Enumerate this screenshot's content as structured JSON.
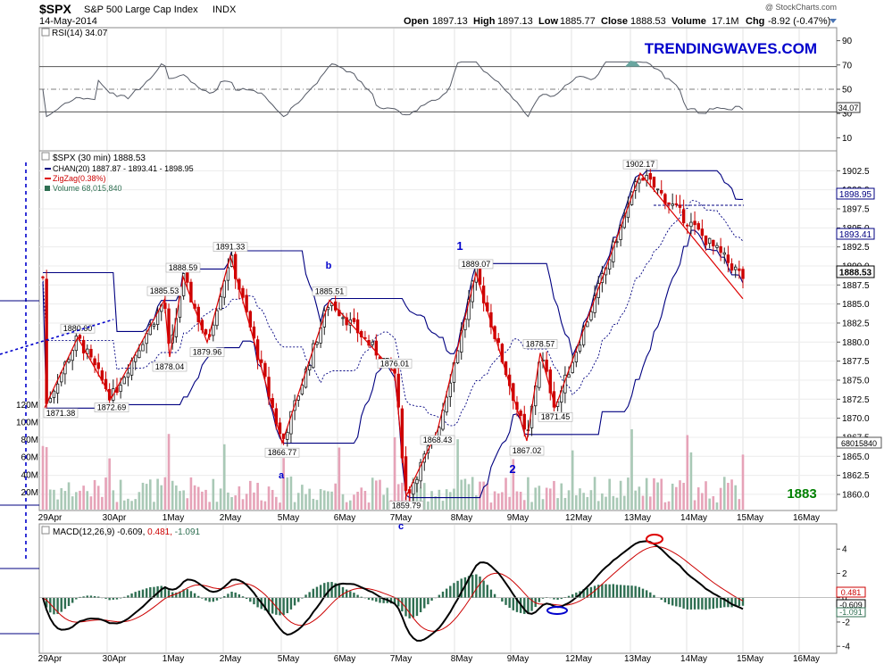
{
  "header": {
    "symbol": "$SPX",
    "name": "S&P 500 Large Cap Index",
    "exchange": "INDX",
    "date": "14-May-2014",
    "copyright": "@ StockCharts.com",
    "open_label": "Open",
    "open": "1897.13",
    "high_label": "High",
    "high": "1897.13",
    "low_label": "Low",
    "low": "1885.77",
    "close_label": "Close",
    "close": "1888.53",
    "volume_label": "Volume",
    "volume": "17.1M",
    "chg_label": "Chg",
    "chg": "-8.92 (-0.47%)"
  },
  "watermark": "TRENDINGWAVES.COM",
  "target_label": "1883",
  "rsi_panel": {
    "legend": "RSI(14) 34.07",
    "value_tag": "34.07",
    "ticks": [
      "90",
      "70",
      "50",
      "30",
      "10"
    ]
  },
  "price_panel": {
    "legend_title": "$SPX (30 min) 1888.53",
    "legend_chan": "CHAN(20) 1887.87 - 1893.41 - 1898.95",
    "legend_zigzag": "ZigZag(0.38%)",
    "legend_volume": "Volume 68,015,840",
    "price_ticks": [
      "1902.5",
      "1900.0",
      "1897.5",
      "1895.0",
      "1892.5",
      "1890.0",
      "1887.5",
      "1885.0",
      "1882.5",
      "1880.0",
      "1877.5",
      "1875.0",
      "1872.5",
      "1870.0",
      "1867.5",
      "1865.0",
      "1862.5",
      "1860.0"
    ],
    "volume_ticks": [
      "120M",
      "100M",
      "80M",
      "60M",
      "40M",
      "20M"
    ],
    "tags": {
      "chan_upper": "1898.95",
      "chan_mid": "1893.41",
      "close": "1888.53",
      "volume": "68015840"
    }
  },
  "macd_panel": {
    "legend_prefix": "MACD(12,26,9)",
    "legend_macd": "-0.609,",
    "legend_signal": "0.481,",
    "legend_hist": "-1.091",
    "ticks": [
      "4",
      "2",
      "0",
      "-2",
      "-4"
    ],
    "tags": {
      "signal": "0.481",
      "macd": "-0.609",
      "hist": "-1.091"
    }
  },
  "x_axis_labels": [
    "29Apr",
    "30Apr",
    "1May",
    "2May",
    "5May",
    "6May",
    "7May",
    "8May",
    "9May",
    "12May",
    "13May",
    "14May",
    "15May",
    "16May"
  ],
  "wave_labels": [
    "a",
    "b",
    "c",
    "1",
    "2"
  ],
  "colors": {
    "up_candle": "#1a1a1a",
    "down_candle": "#cc0000",
    "channel": "#000080",
    "zigzag": "#dd0000",
    "wave_label": "#0000cc",
    "watermark": "#0000cc",
    "target": "#008000",
    "macd_line": "#000000",
    "signal_line": "#cc0000",
    "histogram": "#2f6f52"
  },
  "chart_data": {
    "type": "candlestick",
    "interval": "30 min",
    "zigzag_points": [
      {
        "label": "1871.38",
        "value": 1871.38
      },
      {
        "label": "1880.60",
        "value": 1880.6
      },
      {
        "label": "1872.69",
        "value": 1872.69
      },
      {
        "label": "1885.53",
        "value": 1885.53
      },
      {
        "label": "1878.04",
        "value": 1878.04
      },
      {
        "label": "1888.59",
        "value": 1888.59
      },
      {
        "label": "1879.96",
        "value": 1879.96
      },
      {
        "label": "1891.33",
        "value": 1891.33
      },
      {
        "label": "1866.77",
        "value": 1866.77
      },
      {
        "label": "1885.51",
        "value": 1885.51
      },
      {
        "label": "1876.01",
        "value": 1876.01
      },
      {
        "label": "1859.79",
        "value": 1859.79
      },
      {
        "label": "1868.43",
        "value": 1868.43
      },
      {
        "label": "1889.07",
        "value": 1889.07
      },
      {
        "label": "1867.02",
        "value": 1867.02
      },
      {
        "label": "1878.57",
        "value": 1878.57
      },
      {
        "label": "1871.45",
        "value": 1871.45
      },
      {
        "label": "1902.17",
        "value": 1902.17
      }
    ],
    "rsi_last": 34.07,
    "macd_last": {
      "macd": -0.609,
      "signal": 0.481,
      "histogram": -1.091
    },
    "volume_last": 68015840,
    "price_range": [
      1858,
      1905
    ],
    "rsi_range": [
      0,
      100
    ],
    "macd_range": [
      -4.5,
      6
    ]
  }
}
